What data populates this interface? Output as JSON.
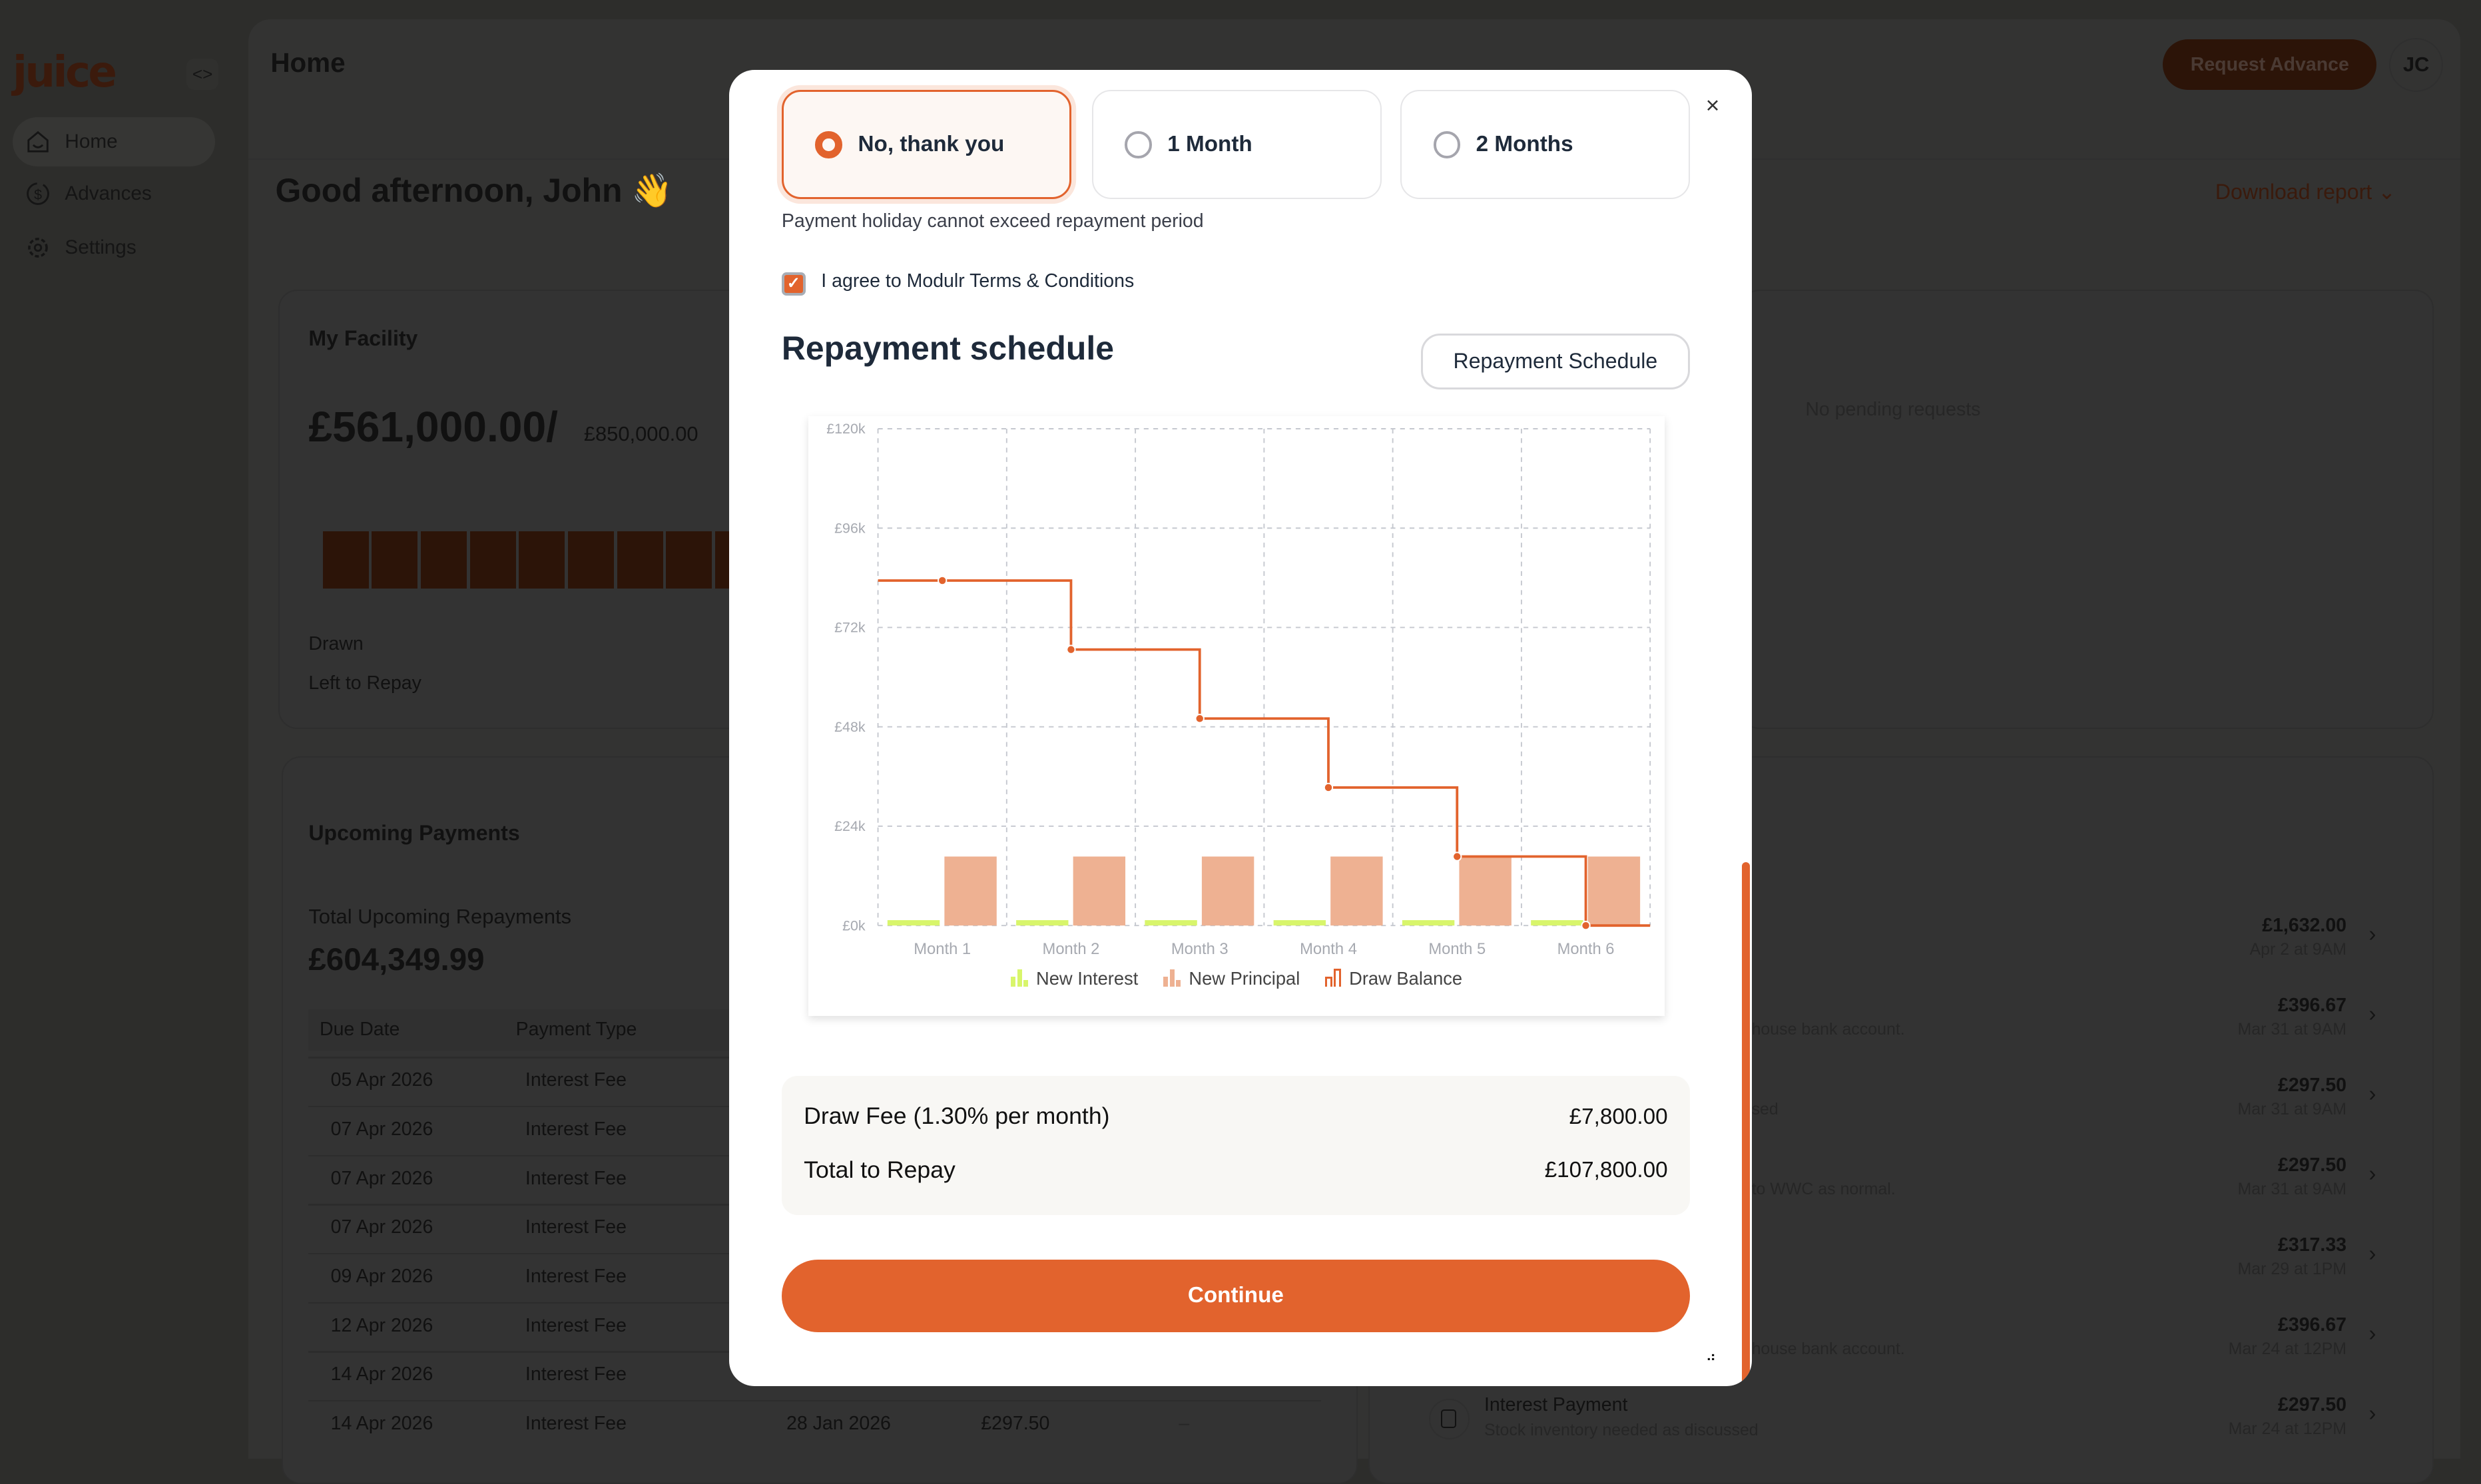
{
  "app": {
    "logo": "juice",
    "collapse_icon": "<>"
  },
  "sidebar": {
    "items": [
      {
        "label": "Home",
        "icon": "home-icon",
        "active": true
      },
      {
        "label": "Advances",
        "icon": "dollar-refresh-icon"
      },
      {
        "label": "Settings",
        "icon": "gear-icon"
      }
    ]
  },
  "header": {
    "title": "Home",
    "request_button": "Request Advance",
    "avatar": "JC"
  },
  "greeting": "Good afternoon, John 👋",
  "download_report": "Download report ⌄",
  "facility": {
    "title": "My Facility",
    "drawn_amount": "£561,000.00/",
    "limit": "£850,000.00",
    "drawn_label": "Drawn",
    "left_label": "Left to Repay",
    "drawn_fraction": 0.66
  },
  "pending": {
    "empty_text": "No pending requests"
  },
  "upcoming": {
    "title": "Upcoming Payments",
    "total_label": "Total Upcoming Repayments",
    "total_value": "£604,349.99",
    "columns": [
      "Due Date",
      "Payment Type"
    ],
    "rows": [
      {
        "due": "05 Apr 2026",
        "type": "Interest Fee"
      },
      {
        "due": "07 Apr 2026",
        "type": "Interest Fee"
      },
      {
        "due": "07 Apr 2026",
        "type": "Interest Fee"
      },
      {
        "due": "07 Apr 2026",
        "type": "Interest Fee"
      },
      {
        "due": "09 Apr 2026",
        "type": "Interest Fee"
      },
      {
        "due": "12 Apr 2026",
        "type": "Interest Fee"
      },
      {
        "due": "14 Apr 2026",
        "type": "Interest Fee"
      },
      {
        "due": "14 Apr 2026",
        "type": "Interest Fee",
        "date2": "28 Jan 2026",
        "amount": "£297.50",
        "extra": "–"
      }
    ]
  },
  "activity": {
    "items": [
      {
        "amount": "£1,632.00",
        "date": "Apr 2 at 9AM",
        "desc": ""
      },
      {
        "amount": "£396.67",
        "date": "Mar 31 at 9AM",
        "desc": "house bank account."
      },
      {
        "amount": "£297.50",
        "date": "Mar 31 at 9AM",
        "desc": "sed"
      },
      {
        "amount": "£297.50",
        "date": "Mar 31 at 9AM",
        "desc": "to WWC as normal."
      },
      {
        "amount": "£317.33",
        "date": "Mar 29 at 1PM",
        "desc": ""
      },
      {
        "amount": "£396.67",
        "date": "Mar 24 at 12PM",
        "desc": "house bank account."
      },
      {
        "amount": "£297.50",
        "date": "Mar 24 at 12PM",
        "title": "Interest Payment",
        "desc": "Stock inventory needed as discussed"
      }
    ]
  },
  "modal": {
    "options": [
      {
        "label": "No, thank you",
        "selected": true
      },
      {
        "label": "1 Month",
        "selected": false
      },
      {
        "label": "2 Months",
        "selected": false
      }
    ],
    "close_icon": "×",
    "hint": "Payment holiday cannot exceed repayment period",
    "terms_checked": true,
    "terms_label": "I agree to Modulr Terms & Conditions",
    "title": "Repayment schedule",
    "schedule_button": "Repayment Schedule",
    "draw_fee_label": "Draw Fee (1.30% per month)",
    "draw_fee_value": "£7,800.00",
    "total_label": "Total to Repay",
    "total_value": "£107,800.00",
    "continue_label": "Continue"
  },
  "colors": {
    "accent": "#e2632d",
    "principal": "#eeb192",
    "interest": "#d8f56b",
    "balance": "#e2632d"
  },
  "chart_data": {
    "type": "bar",
    "categories": [
      "Month 1",
      "Month 2",
      "Month 3",
      "Month 4",
      "Month 5",
      "Month 6"
    ],
    "series": [
      {
        "name": "New Interest",
        "kind": "bar",
        "values": [
          1300,
          1300,
          1300,
          1300,
          1300,
          1300
        ]
      },
      {
        "name": "New Principal",
        "kind": "bar",
        "values": [
          16666.67,
          16666.67,
          16666.67,
          16666.67,
          16666.67,
          16666.67
        ]
      },
      {
        "name": "Draw Balance",
        "kind": "step-line",
        "values": [
          83333.33,
          66666.67,
          50000,
          33333.33,
          16666.67,
          0
        ]
      }
    ],
    "yticks": [
      "£0k",
      "£24k",
      "£48k",
      "£72k",
      "£96k",
      "£120k"
    ],
    "ylim": [
      0,
      120000
    ],
    "grid": true,
    "legend": "bottom"
  }
}
